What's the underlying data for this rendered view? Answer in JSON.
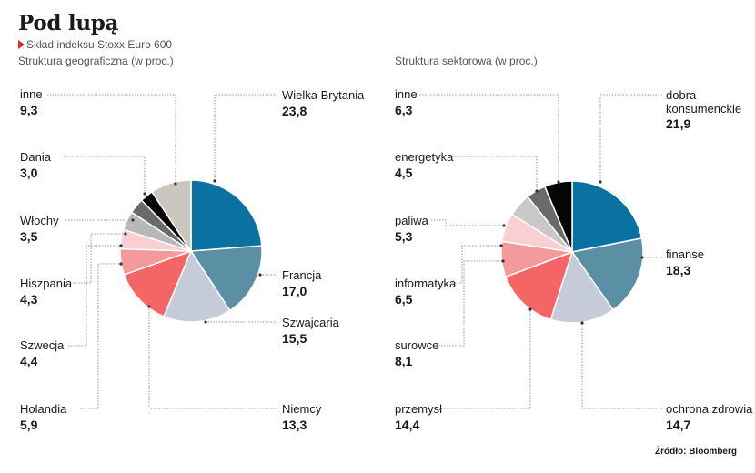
{
  "title": "Pod lupą",
  "subtitle": "Skład indeksu Stoxx Euro 600",
  "source": "Źródło: Bloomberg",
  "chart_data": [
    {
      "type": "pie",
      "title": "Struktura geograficzna (w proc.)",
      "slices": [
        {
          "label": "Wielka Brytania",
          "value_text": "23,8",
          "value": 23.8,
          "color": "#0a72a0"
        },
        {
          "label": "Francja",
          "value_text": "17,0",
          "value": 17.0,
          "color": "#5b8fa3"
        },
        {
          "label": "Szwajcaria",
          "value_text": "15,5",
          "value": 15.5,
          "color": "#c6cbd9"
        },
        {
          "label": "Niemcy",
          "value_text": "13,3",
          "value": 13.3,
          "color": "#f46566"
        },
        {
          "label": "Holandia",
          "value_text": "5,9",
          "value": 5.9,
          "color": "#f59a9a"
        },
        {
          "label": "Szwecja",
          "value_text": "4,4",
          "value": 4.4,
          "color": "#f9cfd1"
        },
        {
          "label": "Hiszpania",
          "value_text": "4,3",
          "value": 4.3,
          "color": "#b8b8b8"
        },
        {
          "label": "Włochy",
          "value_text": "3,5",
          "value": 3.5,
          "color": "#6a6a6a"
        },
        {
          "label": "Dania",
          "value_text": "3,0",
          "value": 3.0,
          "color": "#060606"
        },
        {
          "label": "inne",
          "value_text": "9,3",
          "value": 9.3,
          "color": "#cbc6bf"
        }
      ]
    },
    {
      "type": "pie",
      "title": "Struktura sektorowa (w proc.)",
      "slices": [
        {
          "label": "dobra konsumenckie",
          "value_text": "21,9",
          "value": 21.9,
          "color": "#0a72a0"
        },
        {
          "label": "finanse",
          "value_text": "18,3",
          "value": 18.3,
          "color": "#5b8fa3"
        },
        {
          "label": "ochrona zdrowia",
          "value_text": "14,7",
          "value": 14.7,
          "color": "#c6cbd9"
        },
        {
          "label": "przemysł",
          "value_text": "14,4",
          "value": 14.4,
          "color": "#f46566"
        },
        {
          "label": "surowce",
          "value_text": "8,1",
          "value": 8.1,
          "color": "#f59a9a"
        },
        {
          "label": "informatyka",
          "value_text": "6,5",
          "value": 6.5,
          "color": "#f9cfd1"
        },
        {
          "label": "paliwa",
          "value_text": "5,3",
          "value": 5.3,
          "color": "#c8c8c8"
        },
        {
          "label": "energetyka",
          "value_text": "4,5",
          "value": 4.5,
          "color": "#6a6a6a"
        },
        {
          "label": "inne",
          "value_text": "6,3",
          "value": 6.3,
          "color": "#060606"
        }
      ]
    }
  ]
}
